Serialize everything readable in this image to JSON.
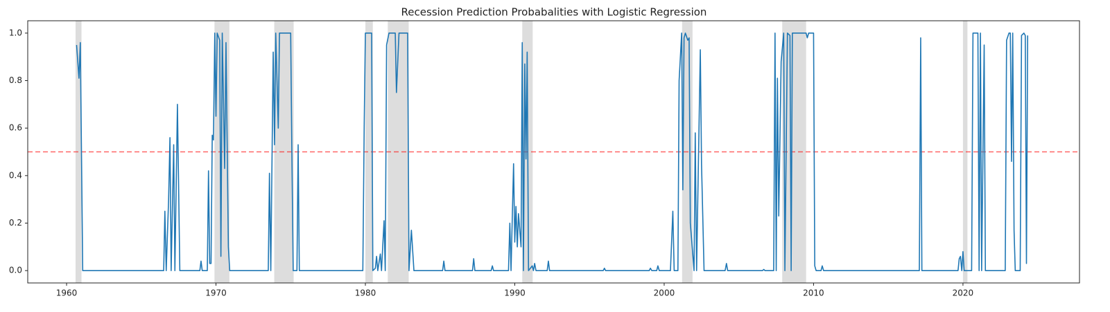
{
  "chart_data": {
    "type": "line",
    "title": "Recession Prediction Probabalities with Logistic Regression",
    "xlim": [
      1957.4,
      2027.8
    ],
    "ylim": [
      -0.052,
      1.052
    ],
    "xticks": [
      1960,
      1970,
      1980,
      1990,
      2000,
      2010,
      2020
    ],
    "yticks": [
      {
        "value": 0,
        "label": "0.0"
      },
      {
        "value": 0.2,
        "label": "0.2"
      },
      {
        "value": 0.4,
        "label": "0.4"
      },
      {
        "value": 0.6,
        "label": "0.6"
      },
      {
        "value": 0.8,
        "label": "0.8"
      },
      {
        "value": 1,
        "label": "1.0"
      }
    ],
    "threshold": {
      "value": 0.5,
      "color": "#ff0000"
    },
    "shaded_spans": [
      [
        1960.6,
        1961.0
      ],
      [
        1969.9,
        1970.9
      ],
      [
        1973.9,
        1975.2
      ],
      [
        1980.0,
        1980.5
      ],
      [
        1981.5,
        1982.9
      ],
      [
        1990.5,
        1991.2
      ],
      [
        2001.2,
        2001.9
      ],
      [
        2007.9,
        2009.5
      ],
      [
        2020.0,
        2020.3
      ]
    ],
    "shade_color": "#dddddd",
    "x": [
      1960.67,
      1960.83,
      1960.92,
      1961.08,
      1966.5,
      1966.58,
      1966.67,
      1966.83,
      1966.92,
      1967.0,
      1967.17,
      1967.25,
      1967.42,
      1967.58,
      1968.92,
      1969.0,
      1969.08,
      1969.42,
      1969.5,
      1969.58,
      1969.67,
      1969.75,
      1969.83,
      1969.92,
      1970.0,
      1970.08,
      1970.25,
      1970.33,
      1970.42,
      1970.58,
      1970.67,
      1970.83,
      1970.92,
      1973.5,
      1973.58,
      1973.67,
      1973.83,
      1973.92,
      1974.0,
      1974.17,
      1974.25,
      1975.0,
      1975.08,
      1975.17,
      1975.42,
      1975.5,
      1975.58,
      1979.83,
      1979.92,
      1980.0,
      1980.42,
      1980.5,
      1980.67,
      1980.75,
      1980.83,
      1981.0,
      1981.08,
      1981.25,
      1981.33,
      1981.42,
      1981.58,
      1982.0,
      1982.08,
      1982.25,
      1982.83,
      1982.92,
      1983.08,
      1983.25,
      1985.17,
      1985.25,
      1985.33,
      1987.17,
      1987.25,
      1987.33,
      1988.42,
      1988.5,
      1988.58,
      1989.58,
      1989.67,
      1989.75,
      1989.92,
      1990.0,
      1990.08,
      1990.17,
      1990.25,
      1990.42,
      1990.5,
      1990.58,
      1990.67,
      1990.75,
      1990.83,
      1990.92,
      1991.17,
      1991.25,
      1991.33,
      1991.42,
      1992.17,
      1992.25,
      1992.33,
      1995.92,
      1996.0,
      1996.08,
      1999.0,
      1999.08,
      1999.17,
      1999.5,
      1999.58,
      1999.67,
      2000.42,
      2000.58,
      2000.67,
      2000.92,
      2001.0,
      2001.17,
      2001.25,
      2001.33,
      2001.42,
      2001.58,
      2001.67,
      2001.75,
      2002.0,
      2002.08,
      2002.17,
      2002.42,
      2002.5,
      2002.67,
      2004.08,
      2004.17,
      2004.25,
      2006.58,
      2006.67,
      2006.75,
      2007.33,
      2007.42,
      2007.5,
      2007.58,
      2007.67,
      2007.83,
      2008.0,
      2008.08,
      2008.25,
      2008.42,
      2008.5,
      2008.58,
      2008.75,
      2009.5,
      2009.58,
      2009.67,
      2010.0,
      2010.08,
      2010.17,
      2010.5,
      2010.58,
      2010.67,
      2017.08,
      2017.17,
      2017.25,
      2019.67,
      2019.75,
      2019.83,
      2019.92,
      2020.0,
      2020.08,
      2020.58,
      2020.67,
      2021.0,
      2021.08,
      2021.17,
      2021.25,
      2021.42,
      2021.5,
      2022.83,
      2022.92,
      2023.08,
      2023.17,
      2023.25,
      2023.33,
      2023.42,
      2023.5,
      2023.83,
      2023.92,
      2024.08,
      2024.17,
      2024.25,
      2024.33
    ],
    "series": [
      {
        "color": "#1f77b4",
        "values": [
          0.95,
          0.81,
          0.96,
          0.0,
          0.0,
          0.25,
          0.0,
          0.3,
          0.56,
          0.0,
          0.53,
          0.0,
          0.7,
          0.0,
          0.0,
          0.04,
          0.0,
          0.0,
          0.42,
          0.03,
          0.03,
          0.57,
          0.55,
          1.0,
          0.65,
          1.0,
          0.97,
          0.06,
          1.0,
          0.43,
          0.96,
          0.1,
          0.0,
          0.0,
          0.41,
          0.0,
          0.92,
          0.53,
          1.0,
          0.6,
          1.0,
          1.0,
          0.5,
          0.0,
          0.0,
          0.53,
          0.0,
          0.0,
          0.6,
          1.0,
          1.0,
          0.0,
          0.01,
          0.06,
          0.0,
          0.07,
          0.0,
          0.21,
          0.0,
          0.95,
          1.0,
          1.0,
          0.75,
          1.0,
          1.0,
          0.0,
          0.17,
          0.0,
          0.0,
          0.04,
          0.0,
          0.0,
          0.05,
          0.0,
          0.0,
          0.02,
          0.0,
          0.0,
          0.2,
          0.0,
          0.45,
          0.12,
          0.27,
          0.1,
          0.24,
          0.1,
          0.96,
          0.0,
          0.87,
          0.47,
          0.92,
          0.0,
          0.02,
          0.0,
          0.03,
          0.0,
          0.0,
          0.04,
          0.0,
          0.0,
          0.01,
          0.0,
          0.0,
          0.01,
          0.0,
          0.0,
          0.02,
          0.0,
          0.0,
          0.25,
          0.0,
          0.0,
          0.8,
          1.0,
          0.34,
          0.98,
          1.0,
          0.97,
          0.98,
          0.2,
          0.0,
          0.58,
          0.0,
          0.93,
          0.45,
          0.0,
          0.0,
          0.03,
          0.0,
          0.0,
          0.005,
          0.0,
          0.0,
          1.0,
          0.0,
          0.81,
          0.23,
          0.88,
          1.0,
          0.0,
          1.0,
          0.99,
          0.0,
          1.0,
          1.0,
          1.0,
          0.98,
          1.0,
          1.0,
          0.02,
          0.0,
          0.0,
          0.02,
          0.0,
          0.0,
          0.98,
          0.0,
          0.0,
          0.05,
          0.06,
          0.0,
          0.08,
          0.0,
          0.0,
          1.0,
          1.0,
          0.0,
          1.0,
          0.0,
          0.95,
          0.0,
          0.0,
          0.97,
          1.0,
          1.0,
          0.46,
          1.0,
          0.17,
          0.0,
          0.0,
          0.99,
          1.0,
          0.99,
          0.03,
          0.99
        ]
      }
    ]
  }
}
